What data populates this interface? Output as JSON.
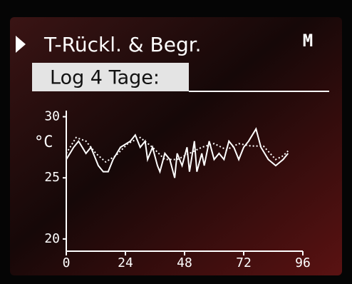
{
  "chart_data": {
    "type": "line",
    "title": "T-Rückl. & Begr.",
    "indicator": "M",
    "subtitle": "Log 4 Tage:",
    "ylabel": "°C",
    "xlim": [
      0,
      96
    ],
    "xticks": [
      0,
      24,
      48,
      72,
      96
    ],
    "ylim": [
      19,
      30.5
    ],
    "yticks": [
      20,
      25,
      30
    ],
    "series": [
      {
        "color": "#ffffff",
        "style": "solid",
        "x": [
          0,
          3,
          5,
          8,
          10,
          13,
          15,
          17,
          19,
          22,
          26,
          28,
          30,
          32,
          33,
          35,
          37,
          38,
          40,
          42,
          44,
          45,
          47,
          49,
          50,
          52,
          53,
          55,
          56,
          58,
          60,
          62,
          64,
          66,
          68,
          70,
          72,
          74,
          77,
          79,
          82,
          85,
          88,
          90
        ],
        "values": [
          26.5,
          27.5,
          28,
          27,
          27.5,
          26,
          25.5,
          25.5,
          26.5,
          27.5,
          28,
          28.5,
          27.5,
          28,
          26.5,
          27.5,
          26,
          25.5,
          27,
          26.5,
          25,
          27,
          26,
          27.5,
          25.5,
          28,
          25.5,
          27,
          26,
          28,
          26.5,
          27,
          26.5,
          28,
          27.5,
          26.5,
          27.5,
          28,
          29,
          27.5,
          26.5,
          26,
          26.5,
          27
        ]
      },
      {
        "color": "#ffffff",
        "style": "dotted",
        "x": [
          0,
          4,
          8,
          12,
          16,
          20,
          25,
          30,
          35,
          40,
          45,
          50,
          55,
          60,
          65,
          70,
          75,
          80,
          85,
          88,
          90
        ],
        "values": [
          27,
          28.3,
          28,
          27,
          26.3,
          26.8,
          27.8,
          28.3,
          27.5,
          26.5,
          26.5,
          27,
          27.5,
          27.8,
          27.3,
          27.8,
          27.6,
          27.6,
          26.5,
          26.8,
          27.2
        ]
      }
    ]
  }
}
